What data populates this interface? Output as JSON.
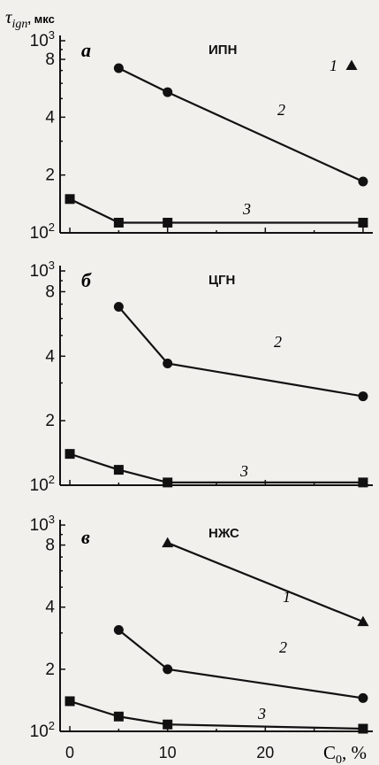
{
  "chart_data": {
    "type": "line",
    "ylabel": {
      "symbol": "τ",
      "subscript": "ign",
      "unit": ", мкс"
    },
    "xlabel": {
      "symbol": "C",
      "subscript": "0",
      "unit": ", %"
    },
    "x_ticks": [
      "0",
      "10",
      "20"
    ],
    "xlim": [
      -1,
      31
    ],
    "y_scale": "log",
    "ylim": [
      100,
      1000
    ],
    "y_ticks": [
      {
        "value": 100,
        "base": "10",
        "exp": "2"
      },
      {
        "value": 200,
        "label": "2"
      },
      {
        "value": 400,
        "label": "4"
      },
      {
        "value": 800,
        "label": "8"
      },
      {
        "value": 1000,
        "base": "10",
        "exp": "3"
      }
    ],
    "panels": [
      {
        "letter": "а",
        "name": "ИПН",
        "series": [
          {
            "label": "1",
            "marker": "triangle",
            "x": [],
            "y": []
          },
          {
            "label": "2",
            "marker": "circle",
            "x": [
              5,
              10,
              30
            ],
            "y": [
              720,
              540,
              185
            ]
          },
          {
            "label": "3",
            "marker": "square",
            "x": [
              0,
              5,
              10,
              30
            ],
            "y": [
              150,
              113,
              113,
              113
            ]
          }
        ]
      },
      {
        "letter": "б",
        "name": "ЦГН",
        "series": [
          {
            "label": "2",
            "marker": "circle",
            "x": [
              5,
              10,
              30
            ],
            "y": [
              680,
              370,
              260
            ]
          },
          {
            "label": "3",
            "marker": "square",
            "x": [
              0,
              5,
              10,
              30
            ],
            "y": [
              140,
              118,
              103,
              103
            ]
          }
        ]
      },
      {
        "letter": "в",
        "name": "НЖС",
        "series": [
          {
            "label": "1",
            "marker": "triangle",
            "x": [
              10,
              30
            ],
            "y": [
              820,
              340
            ]
          },
          {
            "label": "2",
            "marker": "circle",
            "x": [
              5,
              10,
              30
            ],
            "y": [
              310,
              200,
              145
            ]
          },
          {
            "label": "3",
            "marker": "square",
            "x": [
              0,
              5,
              10,
              30
            ],
            "y": [
              140,
              118,
              108,
              103
            ]
          }
        ]
      }
    ]
  }
}
